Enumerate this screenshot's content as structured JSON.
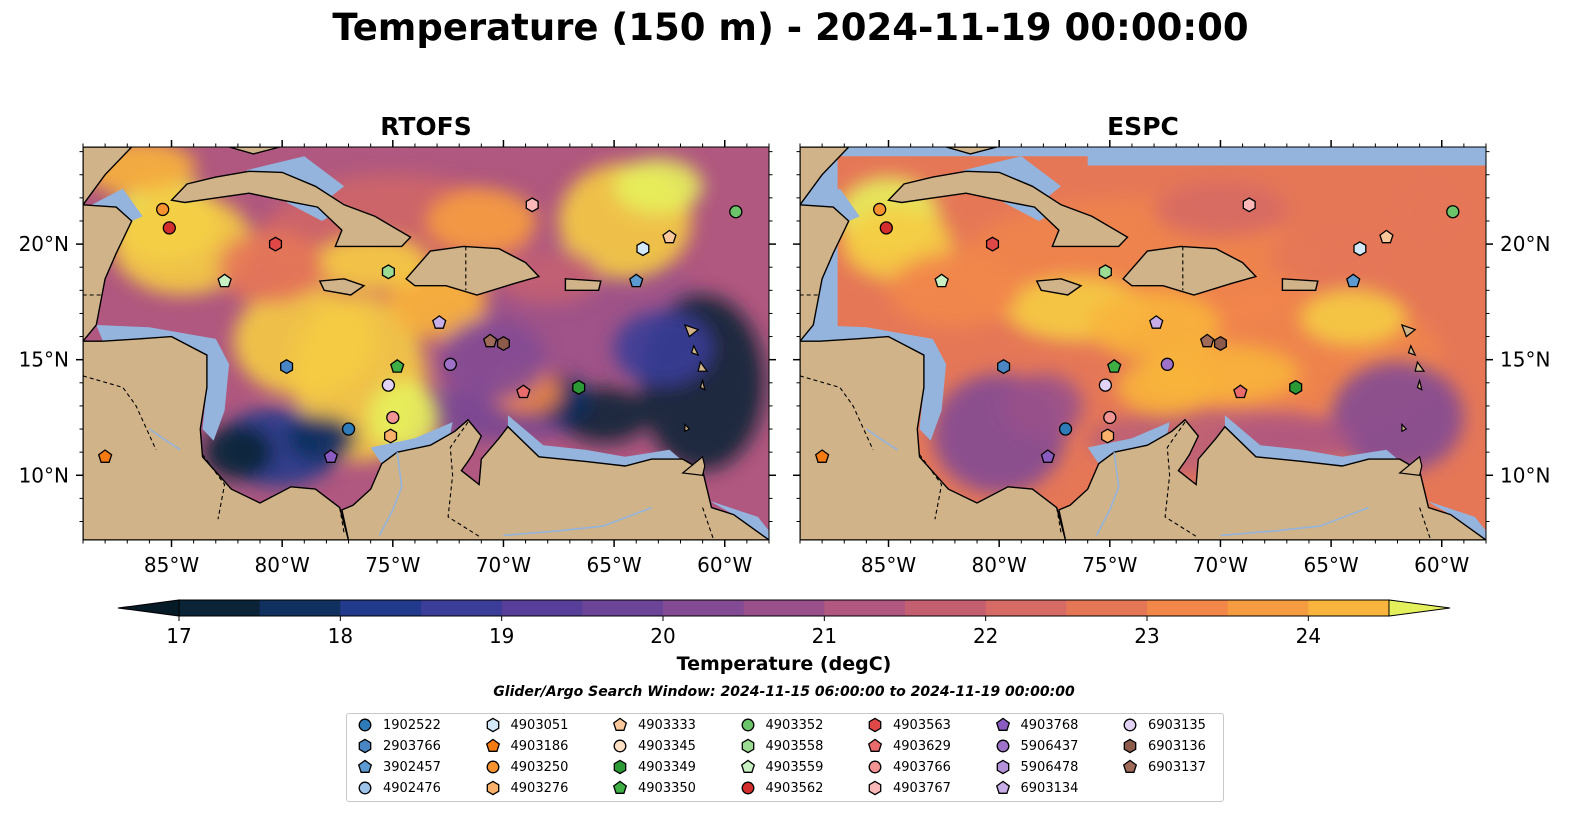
{
  "title": "Temperature (150 m) - 2024-11-19 00:00:00",
  "panels": [
    {
      "title": "RTOFS",
      "variant": "rtofs"
    },
    {
      "title": "ESPC",
      "variant": "espc"
    }
  ],
  "lon_ticks": [
    "85°W",
    "80°W",
    "75°W",
    "70°W",
    "65°W",
    "60°W"
  ],
  "lat_ticks": [
    "20°N",
    "15°N",
    "10°N"
  ],
  "colorbar": {
    "label": "Temperature (degC)",
    "min": 17,
    "max": 24.5,
    "step": 0.5,
    "ticks": [
      "17",
      "18",
      "19",
      "20",
      "21",
      "22",
      "23",
      "24"
    ],
    "colors": [
      "#0a2337",
      "#10305f",
      "#223a8c",
      "#3b3d98",
      "#573f99",
      "#6c4498",
      "#834b93",
      "#9a518b",
      "#b0587f",
      "#c45f72",
      "#d66a64",
      "#e57757",
      "#f2874a",
      "#f69c40",
      "#f8b43c",
      "#f5cc44",
      "#e5f15c"
    ]
  },
  "search_window": "Glider/Argo Search Window: 2024-11-15 06:00:00 to 2024-11-19 00:00:00",
  "legend": [
    {
      "id": "1902522",
      "color": "#2e7bb8",
      "marker": "circle"
    },
    {
      "id": "2903766",
      "color": "#4a86c4",
      "marker": "hexagon"
    },
    {
      "id": "3902457",
      "color": "#5d9ad2",
      "marker": "pentagon"
    },
    {
      "id": "4902476",
      "color": "#9cc4e8",
      "marker": "circle"
    },
    {
      "id": "4903051",
      "color": "#d4e9f7",
      "marker": "hexagon"
    },
    {
      "id": "4903186",
      "color": "#f47a12",
      "marker": "pentagon"
    },
    {
      "id": "4903250",
      "color": "#f7932f",
      "marker": "circle"
    },
    {
      "id": "4903276",
      "color": "#f9b06b",
      "marker": "hexagon"
    },
    {
      "id": "4903333",
      "color": "#fac89a",
      "marker": "pentagon"
    },
    {
      "id": "4903345",
      "color": "#fde0c4",
      "marker": "circle"
    },
    {
      "id": "4903349",
      "color": "#2b9a35",
      "marker": "hexagon"
    },
    {
      "id": "4903350",
      "color": "#3fae45",
      "marker": "pentagon"
    },
    {
      "id": "4903352",
      "color": "#6cc46a",
      "marker": "circle"
    },
    {
      "id": "4903558",
      "color": "#9bdb92",
      "marker": "hexagon"
    },
    {
      "id": "4903559",
      "color": "#c8f0c2",
      "marker": "pentagon"
    },
    {
      "id": "4903562",
      "color": "#d42d2d",
      "marker": "circle"
    },
    {
      "id": "4903563",
      "color": "#e04848",
      "marker": "hexagon"
    },
    {
      "id": "4903629",
      "color": "#ea6b6b",
      "marker": "pentagon"
    },
    {
      "id": "4903766",
      "color": "#f39494",
      "marker": "circle"
    },
    {
      "id": "4903767",
      "color": "#fab8b8",
      "marker": "hexagon"
    },
    {
      "id": "4903768",
      "color": "#8a5bc0",
      "marker": "pentagon"
    },
    {
      "id": "5906437",
      "color": "#9e72c9",
      "marker": "circle"
    },
    {
      "id": "5906478",
      "color": "#b392d8",
      "marker": "hexagon"
    },
    {
      "id": "6903134",
      "color": "#c8aee6",
      "marker": "pentagon"
    },
    {
      "id": "6903135",
      "color": "#e2d2f3",
      "marker": "circle"
    },
    {
      "id": "6903136",
      "color": "#8b5a4a",
      "marker": "hexagon"
    },
    {
      "id": "6903137",
      "color": "#a06a58",
      "marker": "pentagon"
    }
  ],
  "map_floats": [
    {
      "id": "1902522",
      "lon": -77.0,
      "lat": 12.0
    },
    {
      "id": "2903766",
      "lon": -79.8,
      "lat": 14.7
    },
    {
      "id": "3902457",
      "lon": -64.0,
      "lat": 18.4
    },
    {
      "id": "4903051",
      "lon": -63.7,
      "lat": 19.8
    },
    {
      "id": "4903186",
      "lon": -88.0,
      "lat": 10.8
    },
    {
      "id": "4903250",
      "lon": -85.4,
      "lat": 21.5
    },
    {
      "id": "4903276",
      "lon": -75.1,
      "lat": 11.7
    },
    {
      "id": "4903333",
      "lon": -62.5,
      "lat": 20.3
    },
    {
      "id": "4903349",
      "lon": -66.6,
      "lat": 13.8
    },
    {
      "id": "4903350",
      "lon": -74.8,
      "lat": 14.7
    },
    {
      "id": "4903352",
      "lon": -59.5,
      "lat": 21.4
    },
    {
      "id": "4903558",
      "lon": -75.2,
      "lat": 18.8
    },
    {
      "id": "4903559",
      "lon": -82.6,
      "lat": 18.4
    },
    {
      "id": "4903562",
      "lon": -85.1,
      "lat": 20.7
    },
    {
      "id": "4903563",
      "lon": -80.3,
      "lat": 20.0
    },
    {
      "id": "4903629",
      "lon": -69.1,
      "lat": 13.6
    },
    {
      "id": "4903766",
      "lon": -75.0,
      "lat": 12.5
    },
    {
      "id": "4903767",
      "lon": -68.7,
      "lat": 21.7
    },
    {
      "id": "4903768",
      "lon": -77.8,
      "lat": 10.8
    },
    {
      "id": "5906437",
      "lon": -72.4,
      "lat": 14.8
    },
    {
      "id": "6903134",
      "lon": -72.9,
      "lat": 16.6
    },
    {
      "id": "6903135",
      "lon": -75.2,
      "lat": 13.9
    },
    {
      "id": "6903136",
      "lon": -70.0,
      "lat": 15.7
    },
    {
      "id": "6903137",
      "lon": -70.6,
      "lat": 15.8
    }
  ]
}
